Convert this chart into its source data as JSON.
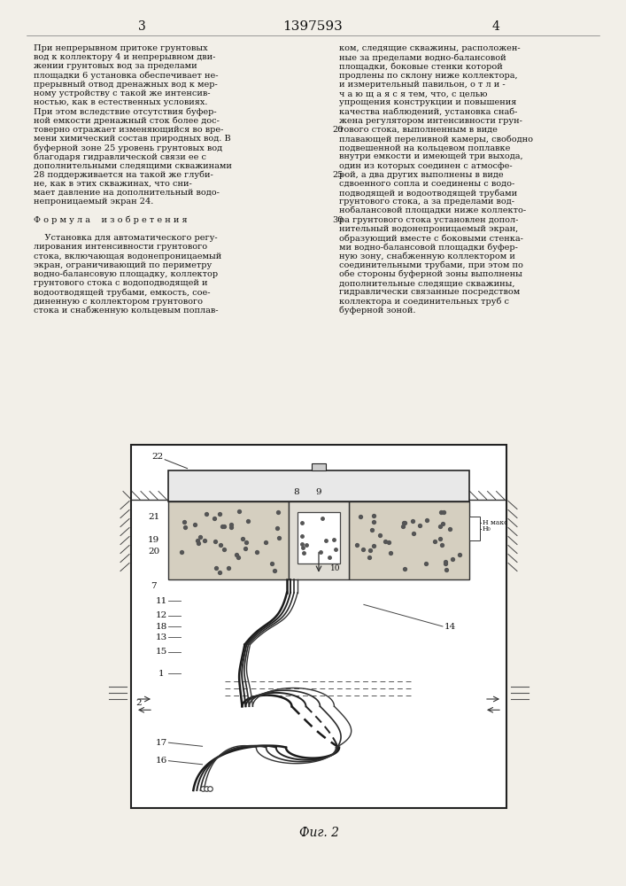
{
  "page_number_left": "3",
  "patent_number": "1397593",
  "page_number_right": "4",
  "bg_color": "#f2efe8",
  "text_color": "#111111",
  "figure_caption": "Фиг. 2"
}
